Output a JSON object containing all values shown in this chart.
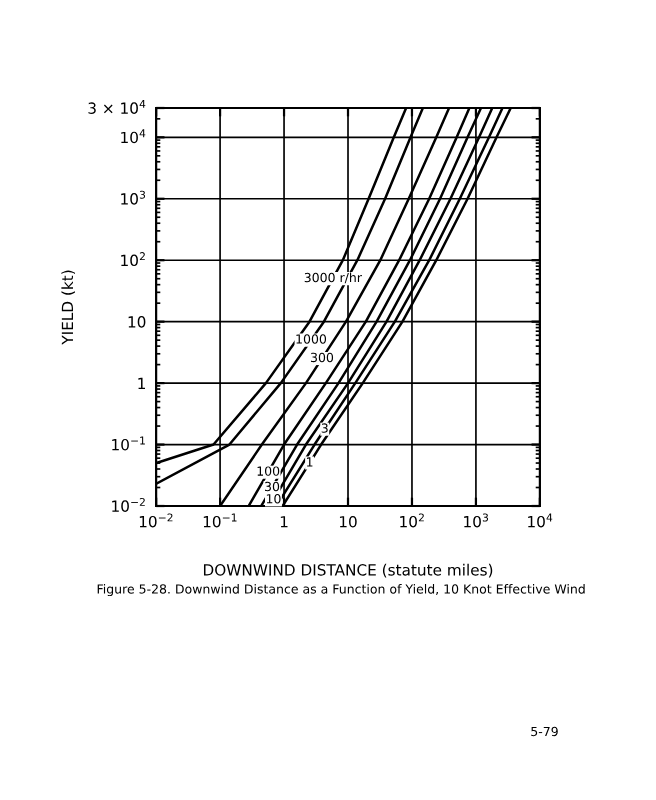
{
  "chart_data": {
    "type": "line",
    "xlabel": "DOWNWIND DISTANCE (statute miles)",
    "ylabel": "YIELD (kt)",
    "log": "xy",
    "grid": true,
    "legend": false,
    "xlim": [
      0.01,
      10000
    ],
    "ylim": [
      0.01,
      30000
    ],
    "xticks": [
      {
        "value": 0.01,
        "label": "10$^{−2}$"
      },
      {
        "value": 0.1,
        "label": "10$^{−1}$"
      },
      1,
      10,
      {
        "value": 100,
        "label": "10$^{2}$"
      },
      {
        "value": 1000,
        "label": "10$^{3}$"
      },
      {
        "value": 10000,
        "label": "10$^{4}$"
      }
    ],
    "yticks": [
      {
        "value": 0.01,
        "label": "10$^{−2}$"
      },
      {
        "value": 0.1,
        "label": "10$^{−1}$"
      },
      1,
      10,
      {
        "value": 100,
        "label": "10$^{2}$"
      },
      {
        "value": 1000,
        "label": "10$^{3}$"
      },
      {
        "value": 10000,
        "label": "10$^{4}$"
      },
      {
        "value": 30000,
        "label": "3 × 10$^{4}$"
      }
    ],
    "series": [
      {
        "name": "3000 r/hr",
        "color": "#000000",
        "x": [
          81,
          52,
          21,
          8.3,
          2.5,
          0.52,
          0.079,
          0.01
        ],
        "values": [
          30000,
          10000,
          1000,
          100,
          10,
          1,
          0.1,
          0.05
        ]
      },
      {
        "name": "1000",
        "color": "#000000",
        "x": [
          148,
          95,
          38,
          14,
          4.2,
          0.89,
          0.14,
          0.01
        ],
        "values": [
          30000,
          10000,
          1000,
          100,
          10,
          1,
          0.1,
          0.023
        ]
      },
      {
        "name": "300",
        "color": "#000000",
        "x": [
          380,
          240,
          89,
          32,
          9.3,
          2.2,
          0.45,
          0.1
        ],
        "values": [
          30000,
          10000,
          1000,
          100,
          10,
          1,
          0.1,
          0.01
        ]
      },
      {
        "name": "100",
        "color": "#000000",
        "x": [
          790,
          500,
          186,
          63,
          19,
          4.5,
          1,
          0.28
        ],
        "values": [
          30000,
          10000,
          1000,
          100,
          10,
          1,
          0.1,
          0.01
        ]
      },
      {
        "name": "30",
        "color": "#000000",
        "x": [
          1200,
          740,
          275,
          93,
          28,
          7.1,
          1.6,
          0.44
        ],
        "values": [
          30000,
          10000,
          1000,
          100,
          10,
          1,
          0.1,
          0.01
        ]
      },
      {
        "name": "10",
        "color": "#000000",
        "x": [
          1800,
          1120,
          400,
          132,
          40,
          10,
          2.2,
          0.6
        ],
        "values": [
          30000,
          10000,
          1000,
          100,
          10,
          1,
          0.1,
          0.01
        ]
      },
      {
        "name": "3",
        "color": "#000000",
        "x": [
          2600,
          1600,
          560,
          186,
          54,
          13,
          3,
          0.76
        ],
        "values": [
          30000,
          10000,
          1000,
          100,
          10,
          1,
          0.1,
          0.01
        ]
      },
      {
        "name": "1",
        "color": "#000000",
        "x": [
          3500,
          2100,
          740,
          240,
          71,
          17,
          3.8,
          0.95
        ],
        "values": [
          30000,
          10000,
          1000,
          100,
          10,
          1,
          0.1,
          0.01
        ]
      }
    ],
    "annotations": [
      "Figure 5-28. Downwind Distance as a Function of Yield, 10 Knot Effective Wind",
      "5-79"
    ]
  }
}
